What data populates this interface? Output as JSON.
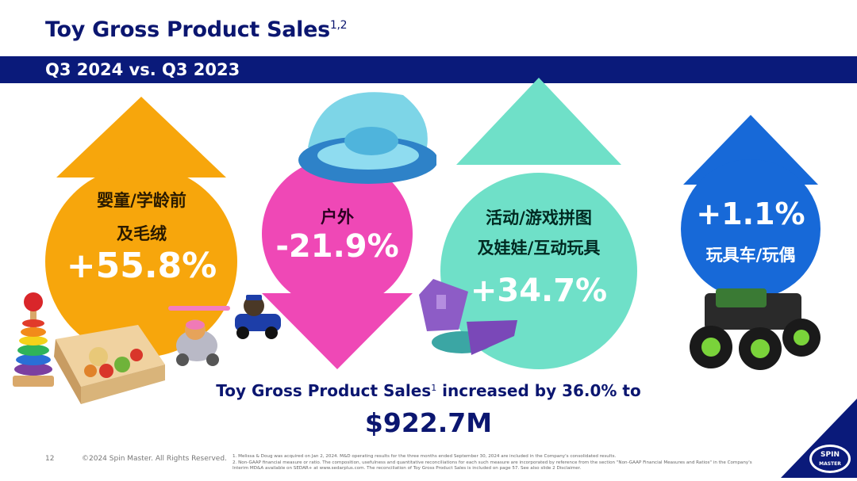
{
  "header": {
    "title": "Toy Gross Product Sales",
    "title_sup": "1,2",
    "subtitle": "Q3 2024 vs. Q3  2023"
  },
  "segments": [
    {
      "label_line1": "婴童/学龄前",
      "label_line2": "及毛绒",
      "value": "+55.8%",
      "direction": "up",
      "color": "#f7a60c"
    },
    {
      "label_line1": "户外",
      "label_line2": "",
      "value": "-21.9%",
      "direction": "down",
      "color": "#ef48b6"
    },
    {
      "label_line1": "活动/游戏拼图",
      "label_line2": "及娃娃/互动玩具",
      "value": "+34.7%",
      "direction": "up",
      "color": "#6fe0c8"
    },
    {
      "label_line1": "玩具车/玩偶",
      "label_line2": "",
      "value": "+1.1%",
      "direction": "up",
      "color": "#1769d8"
    }
  ],
  "summary": {
    "text": "Toy Gross Product Sales",
    "sup": "1",
    "text_after": " increased by 36.0% to",
    "total": "$922.7M"
  },
  "footer": {
    "page_number": "12",
    "copyright": "©2024 Spin Master. All Rights Reserved.",
    "note1": "1. Melissa & Doug was acquired on Jan 2, 2024. M&D operating results for the three months ended September 30, 2024 are included in the Company's consolidated results.",
    "note2": "2. Non-GAAP financial measure or ratio. The composition, usefulness and quantitative reconciliations for each such measure are incorporated by reference from the section \"Non-GAAP Financial Measures and Ratios\" in the Company's Interim MD&A available on SEDAR+ at www.sedarplus.com. The reconciliation of Toy Gross Product Sales is included on page 57. See also slide 2 Disclaimer.",
    "logo_line1": "SPIN",
    "logo_line2": "MASTER"
  },
  "icons": {
    "images": [
      "stacking-rings-icon",
      "wooden-food-crate-icon",
      "paw-patrol-helicopter-icon",
      "paw-patrol-police-car-icon",
      "baby-swim-float-icon",
      "kinetic-sand-castle-icon",
      "monster-truck-icon"
    ]
  }
}
